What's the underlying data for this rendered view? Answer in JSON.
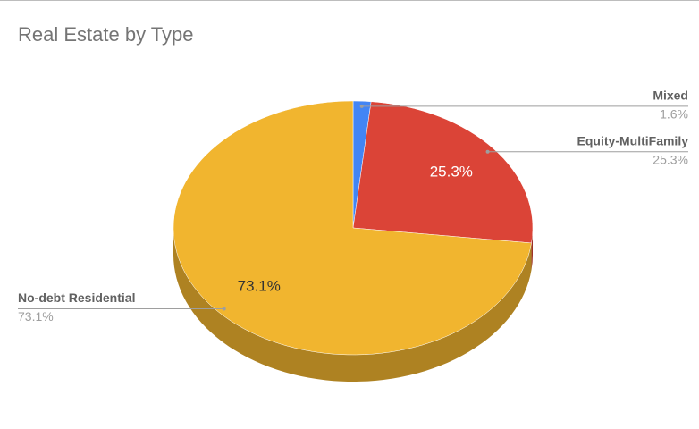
{
  "chart_data": {
    "type": "pie",
    "title": "Real Estate by Type",
    "categories": [
      "Mixed",
      "Equity-MultiFamily",
      "No-debt Residential"
    ],
    "values": [
      1.6,
      25.3,
      73.1
    ],
    "value_labels": [
      "1.6%",
      "25.3%",
      "73.1%"
    ],
    "colors": [
      "#4285f4",
      "#db4437",
      "#f1b52f"
    ],
    "three_d": true
  }
}
